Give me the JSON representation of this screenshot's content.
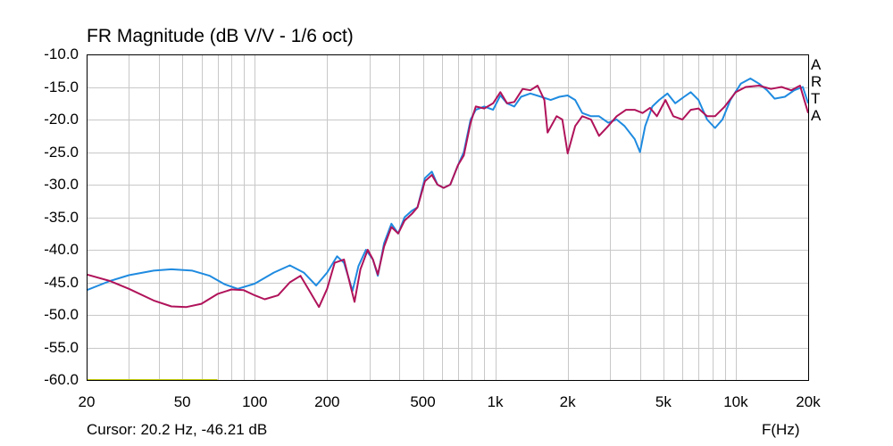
{
  "brand": [
    "A",
    "R",
    "T",
    "A"
  ],
  "cursor_readout": "Cursor: 20.2 Hz, -46.21 dB",
  "colors": {
    "background": "#ffffff",
    "grid": "#c8c8c8",
    "frame": "#000000",
    "series_blue": "#1f8be0",
    "series_red": "#b0135a",
    "marker_line": "#c8d010"
  },
  "chart_data": {
    "type": "line",
    "title": "FR Magnitude (dB V/V - 1/6 oct)",
    "xlabel": "F(Hz)",
    "ylabel": "",
    "x_scale": "log",
    "xlim": [
      20,
      20000
    ],
    "ylim": [
      -60,
      -10
    ],
    "grid": true,
    "x_ticks": [
      {
        "value": 20,
        "label": "20"
      },
      {
        "value": 50,
        "label": "50"
      },
      {
        "value": 100,
        "label": "100"
      },
      {
        "value": 200,
        "label": "200"
      },
      {
        "value": 500,
        "label": "500"
      },
      {
        "value": 1000,
        "label": "1k"
      },
      {
        "value": 2000,
        "label": "2k"
      },
      {
        "value": 5000,
        "label": "5k"
      },
      {
        "value": 10000,
        "label": "10k"
      },
      {
        "value": 20000,
        "label": "20k"
      }
    ],
    "y_ticks": [
      {
        "value": -10,
        "label": "-10.0"
      },
      {
        "value": -15,
        "label": "-15.0"
      },
      {
        "value": -20,
        "label": "-20.0"
      },
      {
        "value": -25,
        "label": "-25.0"
      },
      {
        "value": -30,
        "label": "-30.0"
      },
      {
        "value": -35,
        "label": "-35.0"
      },
      {
        "value": -40,
        "label": "-40.0"
      },
      {
        "value": -45,
        "label": "-45.0"
      },
      {
        "value": -50,
        "label": "-50.0"
      },
      {
        "value": -55,
        "label": "-55.0"
      },
      {
        "value": -60,
        "label": "-60.0"
      }
    ],
    "series": [
      {
        "color": "#1f8be0",
        "points": [
          [
            20,
            -46.2
          ],
          [
            25,
            -44.8
          ],
          [
            30,
            -43.9
          ],
          [
            38,
            -43.2
          ],
          [
            45,
            -43.0
          ],
          [
            55,
            -43.2
          ],
          [
            65,
            -44.0
          ],
          [
            75,
            -45.3
          ],
          [
            85,
            -46.0
          ],
          [
            100,
            -45.2
          ],
          [
            120,
            -43.5
          ],
          [
            140,
            -42.4
          ],
          [
            160,
            -43.5
          ],
          [
            180,
            -45.5
          ],
          [
            200,
            -43.5
          ],
          [
            220,
            -41.0
          ],
          [
            235,
            -42.0
          ],
          [
            255,
            -46.3
          ],
          [
            270,
            -42.5
          ],
          [
            290,
            -40.0
          ],
          [
            310,
            -41.5
          ],
          [
            325,
            -44.0
          ],
          [
            345,
            -39.0
          ],
          [
            370,
            -36.0
          ],
          [
            395,
            -37.5
          ],
          [
            420,
            -35.0
          ],
          [
            450,
            -34.0
          ],
          [
            475,
            -33.5
          ],
          [
            510,
            -29.0
          ],
          [
            545,
            -28.0
          ],
          [
            575,
            -30.0
          ],
          [
            610,
            -30.5
          ],
          [
            650,
            -30.0
          ],
          [
            700,
            -27.0
          ],
          [
            740,
            -25.0
          ],
          [
            790,
            -20.0
          ],
          [
            830,
            -18.5
          ],
          [
            900,
            -18.0
          ],
          [
            980,
            -18.5
          ],
          [
            1050,
            -16.3
          ],
          [
            1120,
            -17.5
          ],
          [
            1200,
            -18.0
          ],
          [
            1280,
            -16.5
          ],
          [
            1400,
            -16.0
          ],
          [
            1550,
            -16.5
          ],
          [
            1700,
            -17.0
          ],
          [
            1850,
            -16.5
          ],
          [
            2000,
            -16.3
          ],
          [
            2150,
            -17.0
          ],
          [
            2300,
            -19.0
          ],
          [
            2500,
            -19.5
          ],
          [
            2700,
            -19.5
          ],
          [
            2950,
            -20.5
          ],
          [
            3200,
            -20.0
          ],
          [
            3450,
            -21.0
          ],
          [
            3800,
            -23.0
          ],
          [
            4000,
            -25.0
          ],
          [
            4200,
            -21.0
          ],
          [
            4500,
            -18.0
          ],
          [
            4800,
            -17.0
          ],
          [
            5200,
            -16.0
          ],
          [
            5600,
            -17.5
          ],
          [
            6100,
            -16.5
          ],
          [
            6500,
            -15.8
          ],
          [
            7000,
            -17.0
          ],
          [
            7600,
            -20.0
          ],
          [
            8200,
            -21.3
          ],
          [
            8800,
            -20.0
          ],
          [
            9500,
            -17.0
          ],
          [
            10500,
            -14.5
          ],
          [
            11500,
            -13.7
          ],
          [
            12500,
            -14.5
          ],
          [
            13500,
            -15.5
          ],
          [
            14500,
            -16.8
          ],
          [
            16000,
            -16.5
          ],
          [
            17500,
            -15.5
          ],
          [
            19000,
            -15.0
          ],
          [
            20000,
            -17.5
          ]
        ]
      },
      {
        "color": "#b0135a",
        "points": [
          [
            20,
            -43.8
          ],
          [
            25,
            -44.8
          ],
          [
            30,
            -46.0
          ],
          [
            38,
            -47.8
          ],
          [
            45,
            -48.7
          ],
          [
            52,
            -48.8
          ],
          [
            60,
            -48.3
          ],
          [
            70,
            -46.8
          ],
          [
            80,
            -46.1
          ],
          [
            90,
            -46.2
          ],
          [
            100,
            -47.0
          ],
          [
            110,
            -47.6
          ],
          [
            125,
            -47.0
          ],
          [
            140,
            -45.0
          ],
          [
            155,
            -44.0
          ],
          [
            170,
            -46.5
          ],
          [
            185,
            -48.8
          ],
          [
            200,
            -46.0
          ],
          [
            215,
            -42.0
          ],
          [
            235,
            -41.5
          ],
          [
            250,
            -45.5
          ],
          [
            260,
            -48.0
          ],
          [
            275,
            -43.0
          ],
          [
            295,
            -40.0
          ],
          [
            310,
            -41.5
          ],
          [
            325,
            -43.8
          ],
          [
            345,
            -39.5
          ],
          [
            370,
            -36.5
          ],
          [
            395,
            -37.5
          ],
          [
            420,
            -35.5
          ],
          [
            450,
            -34.5
          ],
          [
            475,
            -33.5
          ],
          [
            510,
            -29.5
          ],
          [
            545,
            -28.5
          ],
          [
            575,
            -30.0
          ],
          [
            610,
            -30.5
          ],
          [
            650,
            -30.0
          ],
          [
            700,
            -27.0
          ],
          [
            740,
            -25.5
          ],
          [
            790,
            -20.5
          ],
          [
            830,
            -18.0
          ],
          [
            900,
            -18.3
          ],
          [
            980,
            -17.5
          ],
          [
            1050,
            -15.8
          ],
          [
            1120,
            -17.5
          ],
          [
            1200,
            -17.3
          ],
          [
            1300,
            -15.3
          ],
          [
            1400,
            -15.5
          ],
          [
            1500,
            -14.8
          ],
          [
            1600,
            -17.0
          ],
          [
            1650,
            -22.0
          ],
          [
            1800,
            -19.5
          ],
          [
            1900,
            -20.0
          ],
          [
            2000,
            -25.2
          ],
          [
            2150,
            -21.0
          ],
          [
            2300,
            -19.5
          ],
          [
            2500,
            -20.0
          ],
          [
            2700,
            -22.5
          ],
          [
            2950,
            -21.0
          ],
          [
            3200,
            -19.5
          ],
          [
            3500,
            -18.5
          ],
          [
            3800,
            -18.5
          ],
          [
            4100,
            -19.0
          ],
          [
            4400,
            -18.2
          ],
          [
            4700,
            -19.5
          ],
          [
            5100,
            -17.0
          ],
          [
            5500,
            -19.5
          ],
          [
            6000,
            -20.0
          ],
          [
            6500,
            -18.5
          ],
          [
            7000,
            -18.3
          ],
          [
            7600,
            -19.5
          ],
          [
            8200,
            -19.5
          ],
          [
            9000,
            -18.0
          ],
          [
            10000,
            -15.8
          ],
          [
            11000,
            -15.0
          ],
          [
            12500,
            -14.8
          ],
          [
            14000,
            -15.3
          ],
          [
            15500,
            -15.0
          ],
          [
            17000,
            -15.5
          ],
          [
            18500,
            -14.8
          ],
          [
            20000,
            -19.0
          ]
        ]
      },
      {
        "color": "#c8d010",
        "points": [
          [
            20,
            -60
          ],
          [
            70,
            -60
          ]
        ]
      }
    ]
  }
}
